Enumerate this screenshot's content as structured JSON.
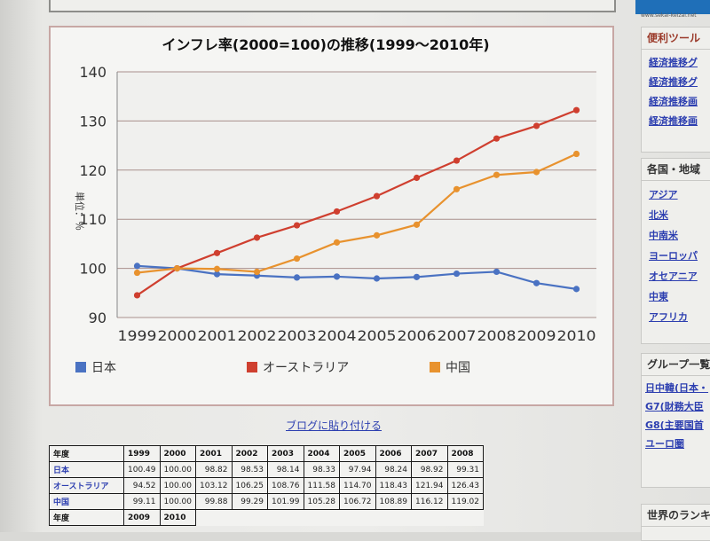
{
  "chart_data": {
    "type": "line",
    "title": "インフレ率(2000=100)の推移(1999～2010年)",
    "ylabel": "単位：％",
    "xlabel": "",
    "categories": [
      "1999",
      "2000",
      "2001",
      "2002",
      "2003",
      "2004",
      "2005",
      "2006",
      "2007",
      "2008",
      "2009",
      "2010"
    ],
    "ylim": [
      90,
      140
    ],
    "yticks": [
      90,
      100,
      110,
      120,
      130,
      140
    ],
    "grid": true,
    "legend_position": "bottom",
    "series": [
      {
        "name": "日本",
        "color": "#4a72c2",
        "values": [
          100.49,
          100.0,
          98.82,
          98.53,
          98.14,
          98.33,
          97.94,
          98.24,
          98.92,
          99.31,
          97.0,
          95.8
        ]
      },
      {
        "name": "オーストラリア",
        "color": "#cf3f2f",
        "values": [
          94.52,
          100.0,
          103.12,
          106.25,
          108.76,
          111.58,
          114.7,
          118.43,
          121.94,
          126.43,
          129.0,
          132.2
        ]
      },
      {
        "name": "中国",
        "color": "#e8922e",
        "values": [
          99.11,
          100.0,
          99.88,
          99.29,
          101.99,
          105.28,
          106.72,
          108.89,
          116.12,
          119.02,
          119.6,
          123.3
        ]
      }
    ]
  },
  "blog_link": "ブログに貼り付ける",
  "table": {
    "header1": [
      "年度",
      "1999",
      "2000",
      "2001",
      "2002",
      "2003",
      "2004",
      "2005",
      "2006",
      "2007",
      "2008"
    ],
    "rows": [
      {
        "label": "日本",
        "values": [
          "100.49",
          "100.00",
          "98.82",
          "98.53",
          "98.14",
          "98.33",
          "97.94",
          "98.24",
          "98.92",
          "99.31"
        ]
      },
      {
        "label": "オーストラリア",
        "values": [
          "94.52",
          "100.00",
          "103.12",
          "106.25",
          "108.76",
          "111.58",
          "114.70",
          "118.43",
          "121.94",
          "126.43"
        ]
      },
      {
        "label": "中国",
        "values": [
          "99.11",
          "100.00",
          "99.88",
          "99.29",
          "101.99",
          "105.28",
          "106.72",
          "108.89",
          "116.12",
          "119.02"
        ]
      }
    ],
    "header2": [
      "年度",
      "2009",
      "2010"
    ]
  },
  "sidebar": {
    "banner_text": "www.sekai-keizai.net",
    "tools_title": "便利ツール",
    "tools": [
      "経済推移グ",
      "経済推移グ",
      "経済推移画",
      "経済推移画"
    ],
    "regions_title": "各国・地域",
    "regions": [
      "アジア",
      "北米",
      "中南米",
      "ヨーロッパ",
      "オセアニア",
      "中東",
      "アフリカ"
    ],
    "groups_title": "グループ一覧",
    "groups": [
      "日中韓(日本・",
      "G7(財務大臣",
      "G8(主要国首",
      "ユーロ圏"
    ],
    "ranking_title": "世界のランキン"
  }
}
